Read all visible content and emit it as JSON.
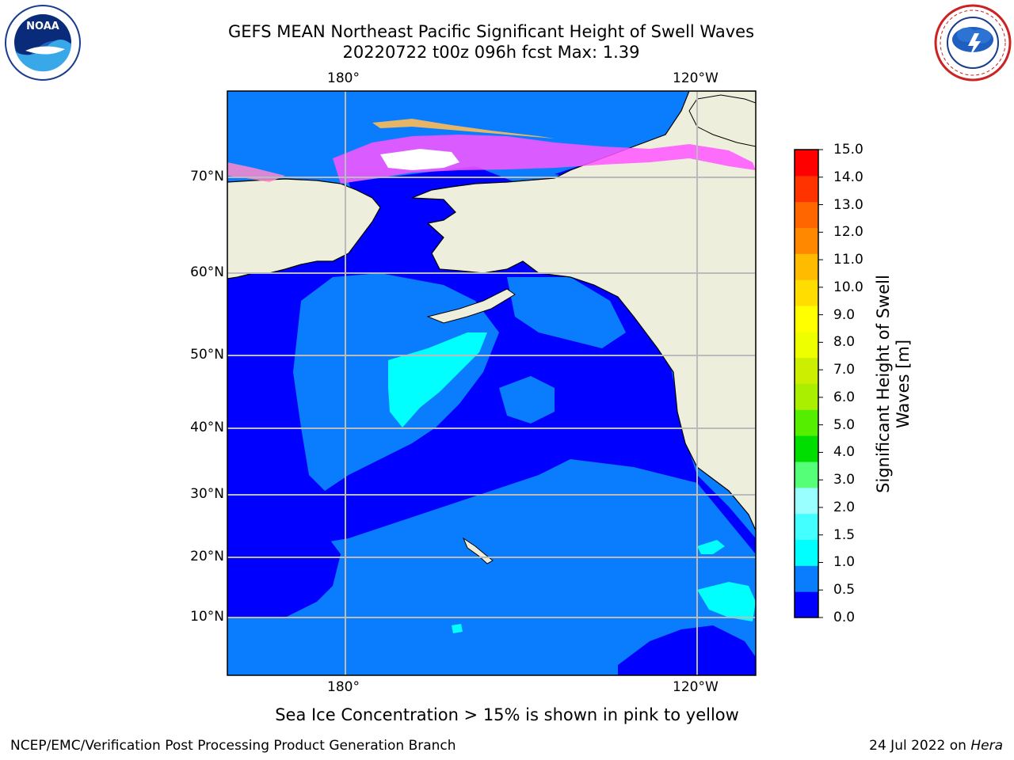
{
  "title": {
    "line1": "GEFS MEAN Northeast Pacific Significant Height of Swell Waves",
    "line2": "20220722 t00z 096h fcst   Max: 1.39"
  },
  "map": {
    "lon_labels_top": [
      "180°",
      "120°W"
    ],
    "lon_labels_bottom": [
      "180°",
      "120°W"
    ],
    "lat_labels": [
      "70°N",
      "60°N",
      "50°N",
      "40°N",
      "30°N",
      "20°N",
      "10°N"
    ],
    "gridlines": true,
    "land_color": "#EEEEDC",
    "coastline_color": "#000000",
    "ice_colors": [
      "#FF55FF",
      "#FF88CC",
      "#FFBB55",
      "#FFDD44"
    ],
    "regions": [
      {
        "label": "0.0-0.5 m",
        "color": "#0000FF"
      },
      {
        "label": "0.5-1.0 m",
        "color": "#0A7DFF"
      },
      {
        "label": "1.0-1.5 m",
        "color": "#00FFFF"
      }
    ]
  },
  "colorbar": {
    "title": "Significant Height of Swell Waves [m]",
    "tick_labels": [
      "0.0",
      "0.5",
      "1.0",
      "1.5",
      "2.0",
      "3.0",
      "4.0",
      "5.0",
      "6.0",
      "7.0",
      "8.0",
      "9.0",
      "10.0",
      "11.0",
      "12.0",
      "13.0",
      "14.0",
      "15.0"
    ],
    "colors": [
      "#0000FF",
      "#0A7DFF",
      "#00FFFF",
      "#44FFFF",
      "#99FFFF",
      "#55FF77",
      "#00DD00",
      "#55EE00",
      "#AAEE00",
      "#CCEE00",
      "#EEFF00",
      "#FFFF00",
      "#FFDD00",
      "#FFBB00",
      "#FF8800",
      "#FF6600",
      "#FF3300",
      "#FF0000"
    ]
  },
  "caption": "Sea Ice Concentration > 15% is shown in pink to yellow",
  "footer": {
    "left": "NCEP/EMC/Verification Post Processing Product Generation Branch",
    "date": "24 Jul 2022 on ",
    "host": "Hera"
  },
  "logos": {
    "noaa_text": "NOAA",
    "nws_text": "NATIONAL WEATHER SERVICE"
  }
}
